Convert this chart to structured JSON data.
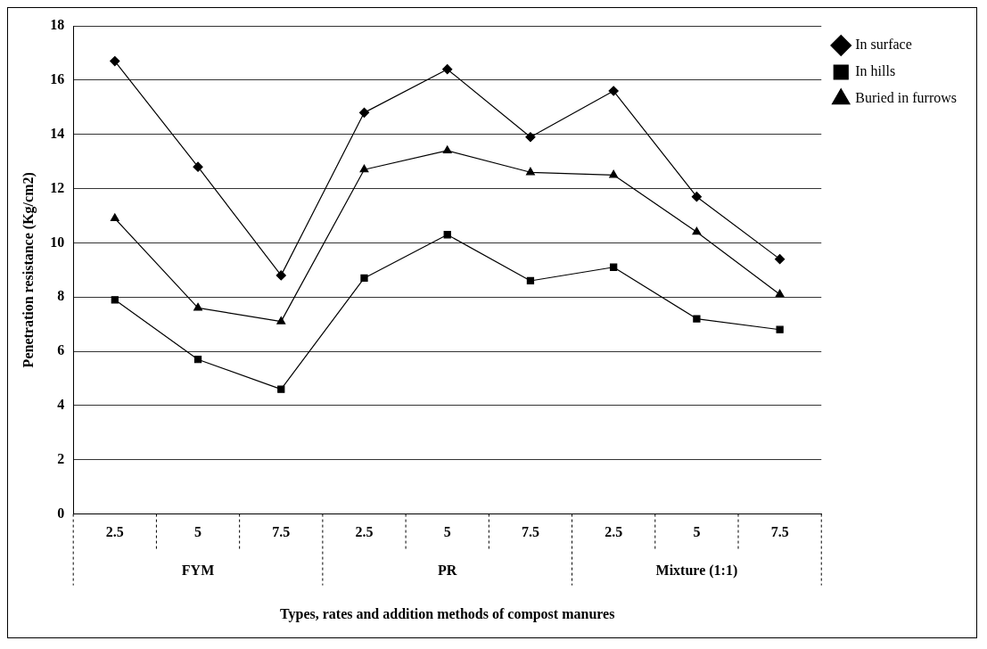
{
  "chart_data": {
    "type": "line",
    "xlabel": "Types, rates and addition methods of compost manures",
    "ylabel": "Penetration resistance (Kg/cm2)",
    "categories": [
      "2.5",
      "5",
      "7.5",
      "2.5",
      "5",
      "7.5",
      "2.5",
      "5",
      "7.5"
    ],
    "annotations": [
      "FYM",
      "PR",
      "Mixture (1:1)"
    ],
    "series": [
      {
        "name": "In surface",
        "color": "#000000",
        "marker": "diamond",
        "values": [
          16.7,
          12.8,
          8.8,
          14.8,
          16.4,
          13.9,
          15.6,
          11.7,
          9.4
        ]
      },
      {
        "name": "In hills",
        "color": "#000000",
        "marker": "square",
        "values": [
          7.9,
          5.7,
          4.6,
          8.7,
          10.3,
          8.6,
          9.1,
          7.2,
          6.8
        ]
      },
      {
        "name": "Buried in furrows",
        "color": "#000000",
        "marker": "triangle",
        "values": [
          10.9,
          7.6,
          7.1,
          12.7,
          13.4,
          12.6,
          12.5,
          10.4,
          8.1
        ]
      }
    ],
    "ylim": [
      0,
      18
    ],
    "yticks": [
      0,
      2,
      4,
      6,
      8,
      10,
      12,
      14,
      16,
      18
    ],
    "grid": "y",
    "legend": "right",
    "line_style": "solid"
  }
}
